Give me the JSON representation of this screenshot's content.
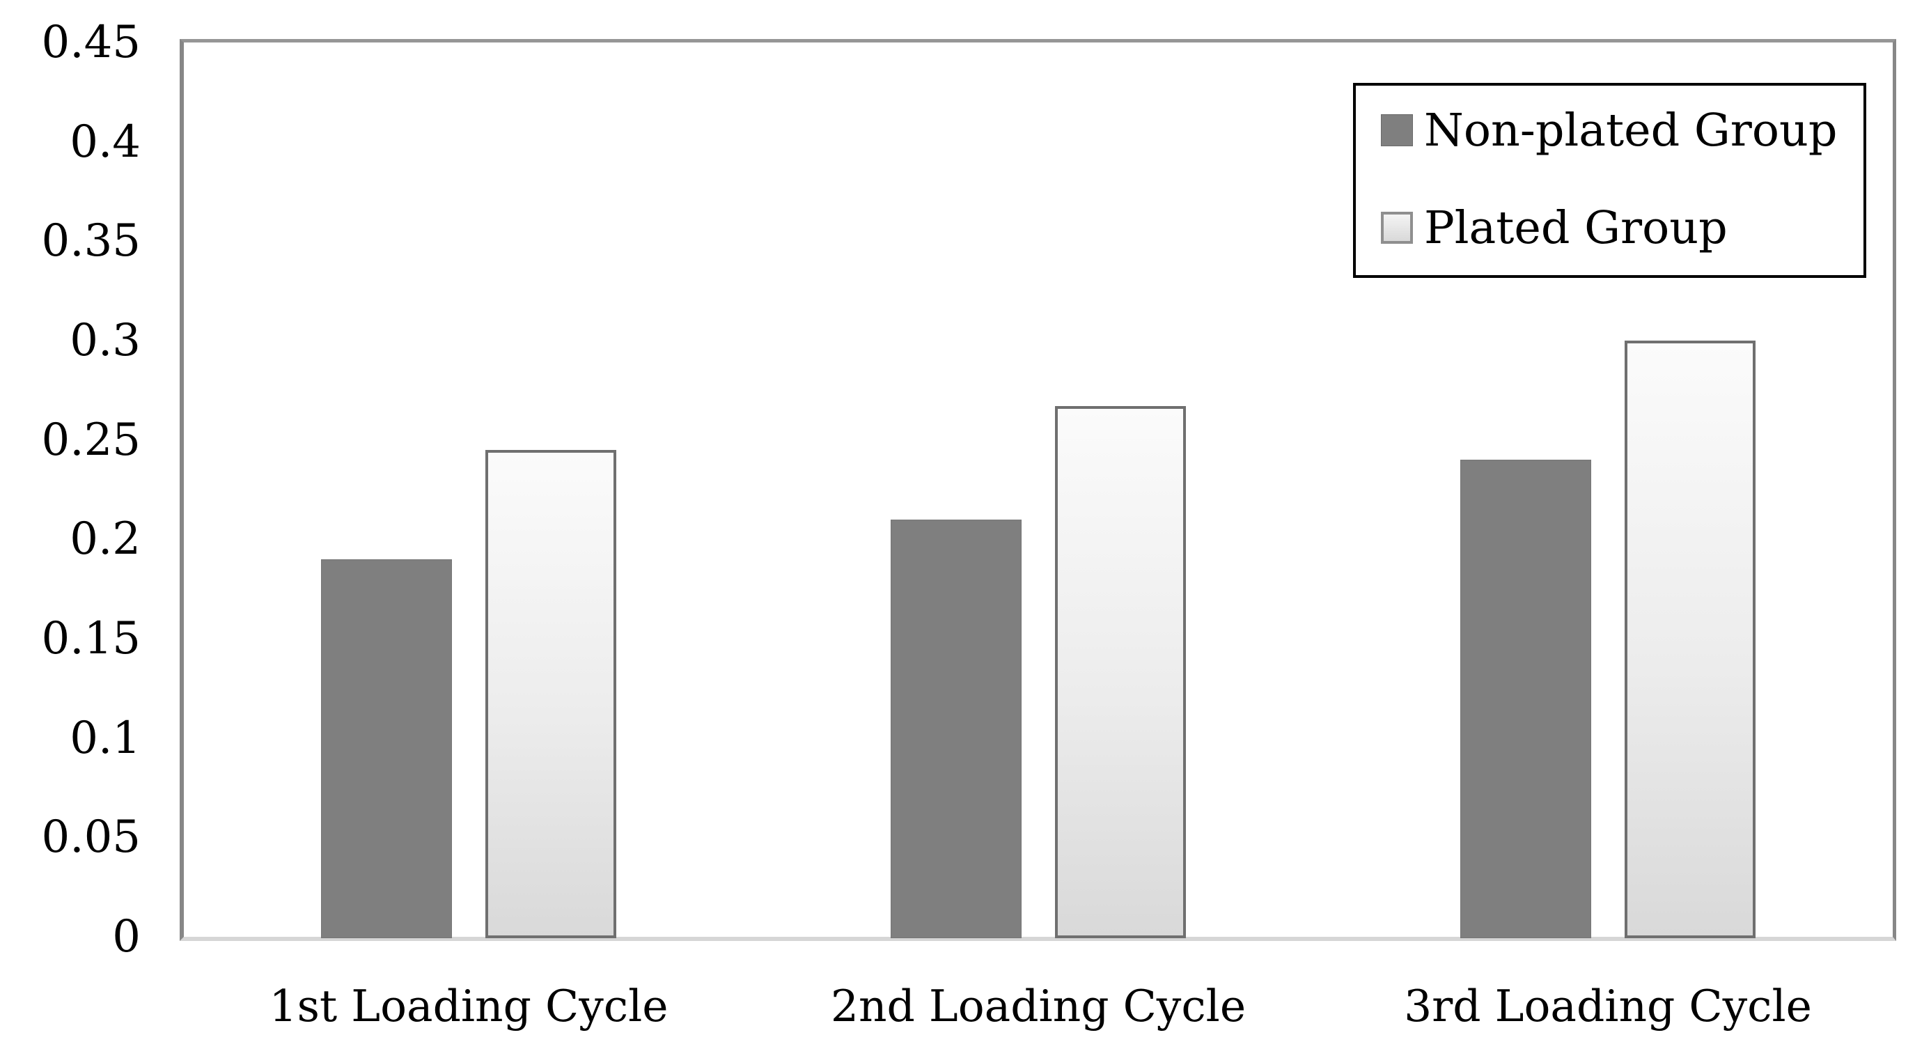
{
  "chart_data": {
    "type": "bar",
    "title": "",
    "xlabel": "",
    "ylabel": "",
    "categories": [
      "1st Loading Cycle",
      "2nd Loading Cycle",
      "3rd Loading Cycle"
    ],
    "series": [
      {
        "name": "Non-plated Group",
        "values": [
          0.19,
          0.21,
          0.24
        ]
      },
      {
        "name": "Plated Group",
        "values": [
          0.245,
          0.267,
          0.3
        ]
      }
    ],
    "ylim": [
      0,
      0.45
    ],
    "ytick_step": 0.05,
    "yticks": [
      {
        "value": 0,
        "label": "0"
      },
      {
        "value": 0.05,
        "label": "0.05"
      },
      {
        "value": 0.1,
        "label": "0.1"
      },
      {
        "value": 0.15,
        "label": "0.15"
      },
      {
        "value": 0.2,
        "label": "0.2"
      },
      {
        "value": 0.25,
        "label": "0.25"
      },
      {
        "value": 0.3,
        "label": "0.3"
      },
      {
        "value": 0.35,
        "label": "0.35"
      },
      {
        "value": 0.4,
        "label": "0.4"
      },
      {
        "value": 0.45,
        "label": "0.45"
      }
    ],
    "grid": false,
    "legend_position": "top-right",
    "colors": {
      "non_plated_fill": "#7f7f7f",
      "plated_fill_top": "#fbfbfb",
      "plated_fill_bottom": "#d9d9d9",
      "plated_border": "#6f6f6f",
      "plot_border": "#878787",
      "baseline": "#d6d6d6",
      "legend_border": "#000000",
      "text": "#000000"
    }
  }
}
